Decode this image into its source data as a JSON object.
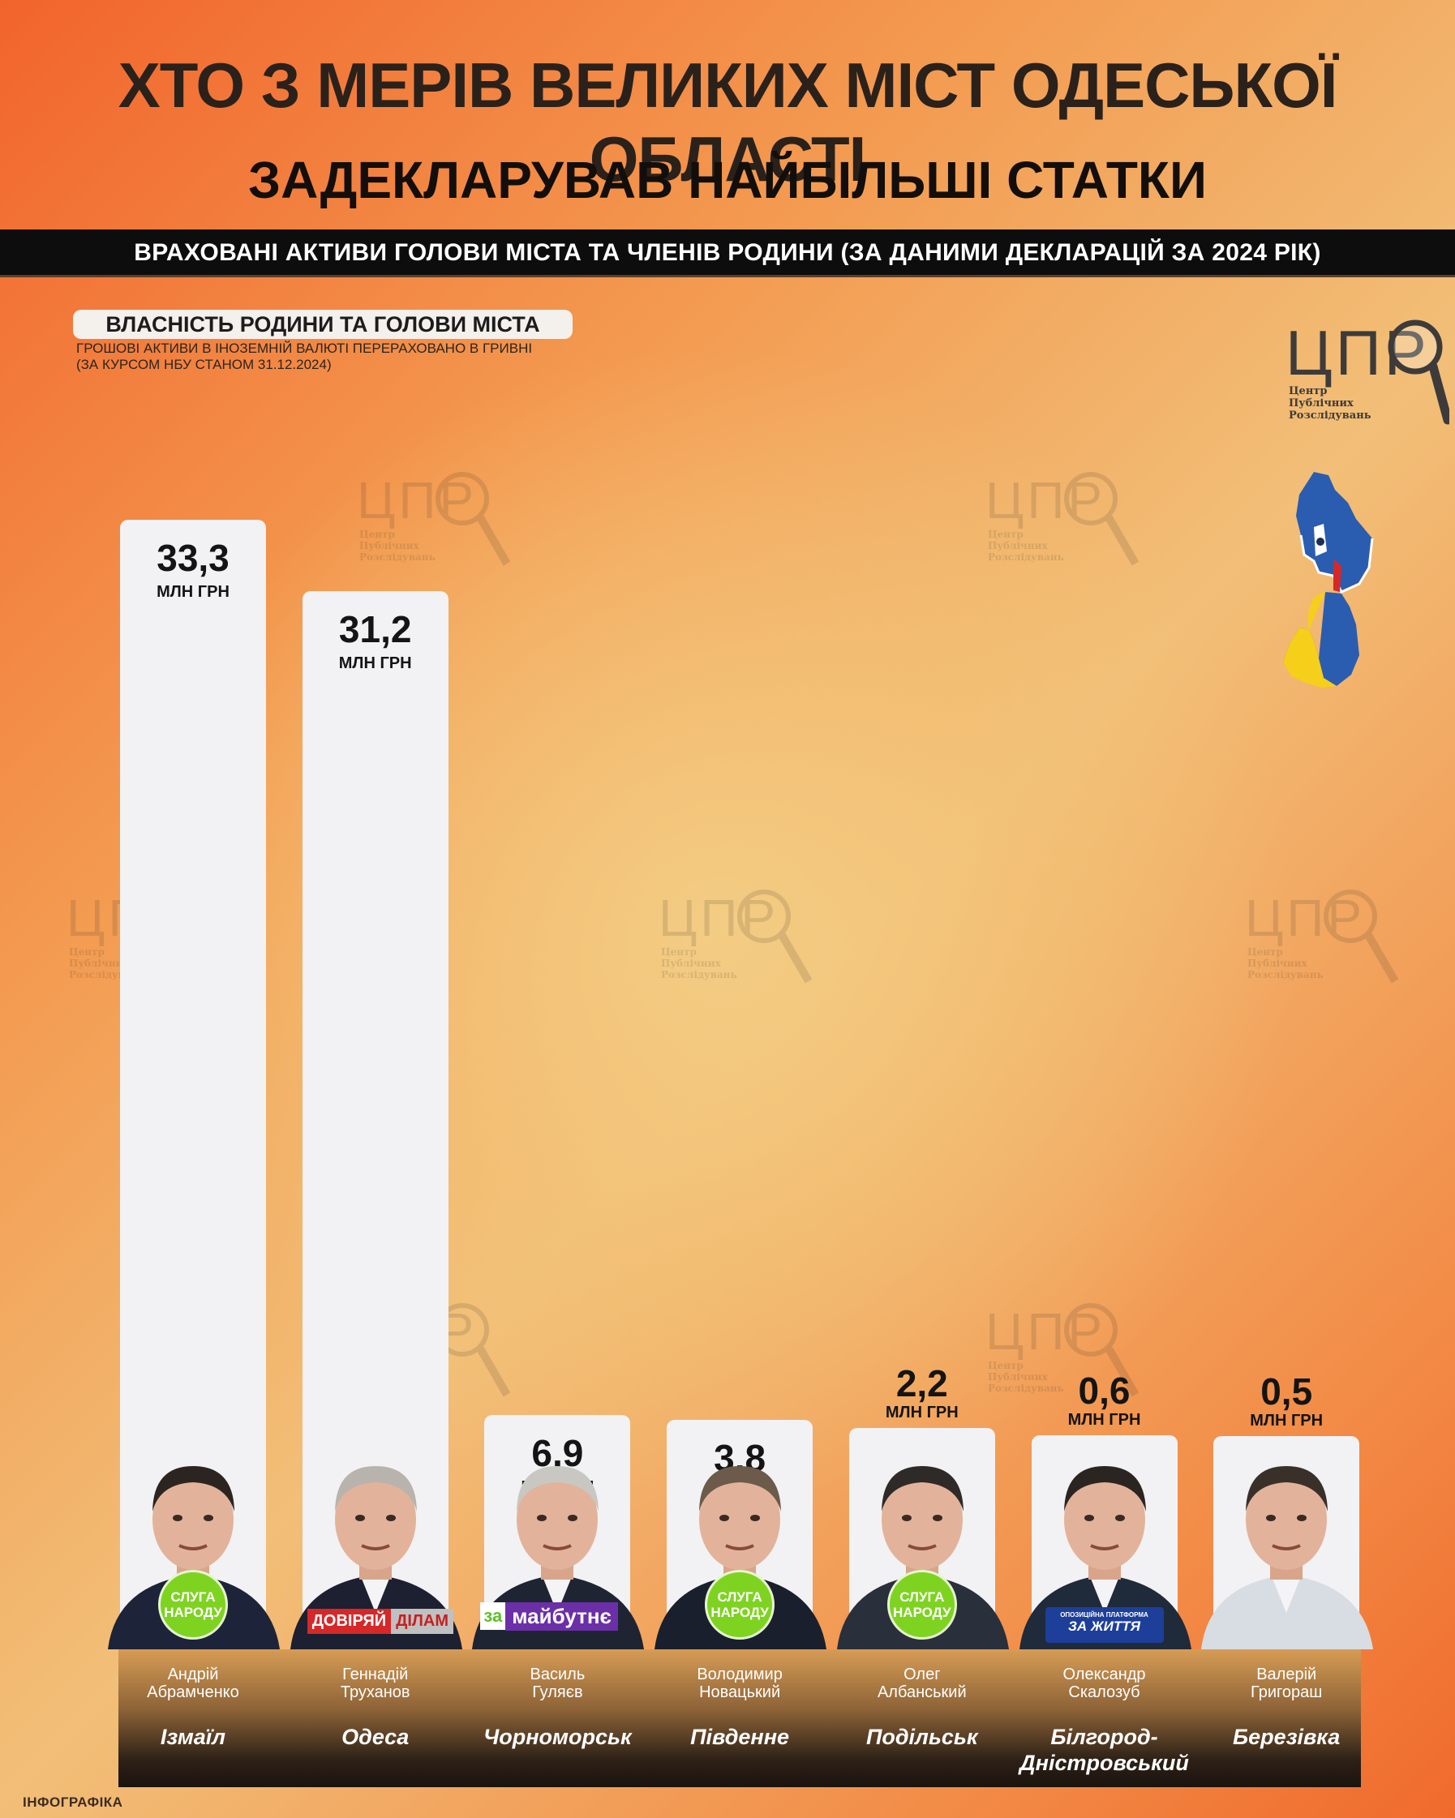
{
  "header": {
    "title_line1": "ХТО З МЕРІВ ВЕЛИКИХ МІСТ ОДЕСЬКОЇ ОБЛАСТІ",
    "title_line2": "ЗАДЕКЛАРУВАВ НАЙБІЛЬШІ СТАТКИ",
    "banner": "ВРАХОВАНІ АКТИВИ ГОЛОВИ МІСТА ТА ЧЛЕНІВ РОДИНИ (ЗА ДАНИМИ ДЕКЛАРАЦІЙ ЗА 2024 РІК)"
  },
  "legend": {
    "label": "ВЛАСНІСТЬ РОДИНИ ТА ГОЛОВИ МІСТА",
    "note_line1": "ГРОШОВІ АКТИВИ В ІНОЗЕМНІЙ ВАЛЮТІ ПЕРЕРАХОВАНО В ГРИВНІ",
    "note_line2": "(ЗА КУРСОМ НБУ СТАНОМ 31.12.2024)"
  },
  "logo": {
    "letters": "ЦПР",
    "line1": "Центр",
    "line2": "Публічних",
    "line3": "Розслідувань"
  },
  "credit": "ІНФОГРАФІКА",
  "colors": {
    "bar": "#f2f2f4",
    "sluha": "#7ed321",
    "doviryai_red": "#d62828",
    "za_maibutne": "#6b2fa8",
    "op_blue": "#1d3f9a",
    "map_blue": "#2a5db0",
    "map_yellow": "#f5cf1a"
  },
  "chart_data": {
    "type": "bar",
    "unit": "МЛН ГРН",
    "ylim": [
      0,
      33.3
    ],
    "categories": [
      "Андрій Абрамченко",
      "Геннадій Труханов",
      "Василь Гуляєв",
      "Володимир Новацький",
      "Олег Албанський",
      "Олександр Скалозуб",
      "Валерій Григораш"
    ],
    "values": [
      33.3,
      31.2,
      6.9,
      3.8,
      2.2,
      0.6,
      0.5
    ],
    "value_labels": [
      "33,3",
      "31,2",
      "6,9",
      "3,8",
      "2,2",
      "0,6",
      "0,5"
    ],
    "mayors": [
      {
        "first": "Андрій",
        "last": "Абрамченко",
        "city": "Ізмаїл",
        "party": "sluha",
        "party_label": "СЛУГА НАРОДУ"
      },
      {
        "first": "Геннадій",
        "last": "Труханов",
        "city": "Одеса",
        "party": "doviryai",
        "party_label": "ДОВІРЯЙ ДІЛАМ"
      },
      {
        "first": "Василь",
        "last": "Гуляєв",
        "city": "Чорноморськ",
        "party": "za_maibutne",
        "party_label": "за майбутнє"
      },
      {
        "first": "Володимир",
        "last": "Новацький",
        "city": "Південне",
        "party": "sluha",
        "party_label": "СЛУГА НАРОДУ"
      },
      {
        "first": "Олег",
        "last": "Албанський",
        "city": "Подільськ",
        "party": "sluha",
        "party_label": "СЛУГА НАРОДУ"
      },
      {
        "first": "Олександр",
        "last": "Скалозуб",
        "city": "Білгород-Дністровський",
        "party": "op",
        "party_label": "ЗА ЖИТТЯ",
        "party_small": "ОПОЗИЦІЙНА ПЛАТФОРМА"
      },
      {
        "first": "Валерій",
        "last": "Григораш",
        "city": "Березівка",
        "party": "none"
      }
    ]
  }
}
